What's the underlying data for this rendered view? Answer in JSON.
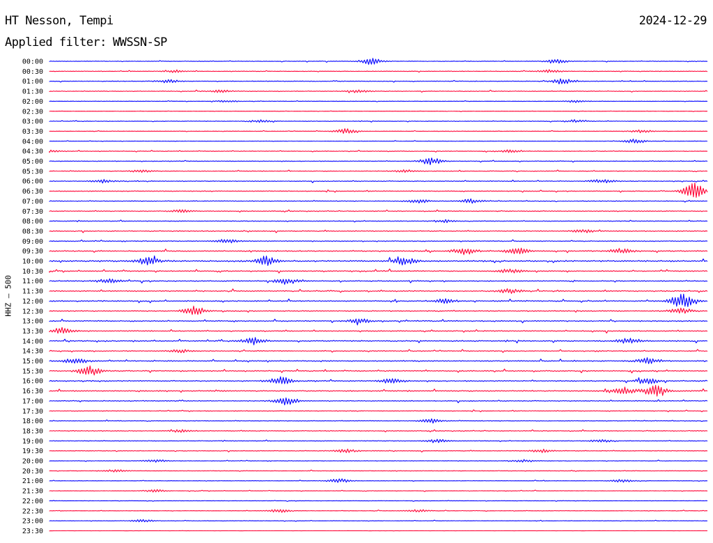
{
  "header": {
    "station": "HT Nesson, Tempi",
    "date": "2024-12-29",
    "filter_label": "Applied filter:",
    "filter_value": "WWSSN-SP",
    "channel_label": "HHZ — 500"
  },
  "chart_data": {
    "type": "line",
    "title": "HT Nesson, Tempi",
    "xlabel": "",
    "ylabel": "HHZ — 500",
    "grid": false,
    "legend": "none",
    "colors": [
      "#0000ff",
      "#ff0033"
    ],
    "trace_minutes": 30,
    "rows": [
      {
        "label": "00:00",
        "activity": 0.2,
        "events": [
          [
            0.49,
            0.7
          ],
          [
            0.77,
            0.5
          ]
        ]
      },
      {
        "label": "00:30",
        "activity": 0.2,
        "events": [
          [
            0.19,
            0.3
          ],
          [
            0.76,
            0.4
          ]
        ]
      },
      {
        "label": "01:00",
        "activity": 0.25,
        "events": [
          [
            0.18,
            0.4
          ],
          [
            0.78,
            0.6
          ]
        ]
      },
      {
        "label": "01:30",
        "activity": 0.25,
        "events": [
          [
            0.26,
            0.3
          ],
          [
            0.47,
            0.3
          ]
        ]
      },
      {
        "label": "02:00",
        "activity": 0.15,
        "events": [
          [
            0.27,
            0.2
          ],
          [
            0.8,
            0.3
          ]
        ]
      },
      {
        "label": "02:30",
        "activity": 0.1,
        "events": []
      },
      {
        "label": "03:00",
        "activity": 0.2,
        "events": [
          [
            0.32,
            0.3
          ],
          [
            0.8,
            0.3
          ]
        ]
      },
      {
        "label": "03:30",
        "activity": 0.15,
        "events": [
          [
            0.45,
            0.6
          ],
          [
            0.9,
            0.4
          ]
        ]
      },
      {
        "label": "04:00",
        "activity": 0.15,
        "events": [
          [
            0.89,
            0.5
          ]
        ]
      },
      {
        "label": "04:30",
        "activity": 0.2,
        "events": [
          [
            0.0,
            0.3
          ],
          [
            0.7,
            0.3
          ]
        ]
      },
      {
        "label": "05:00",
        "activity": 0.25,
        "events": [
          [
            0.58,
            0.8
          ]
        ]
      },
      {
        "label": "05:30",
        "activity": 0.25,
        "events": [
          [
            0.14,
            0.3
          ],
          [
            0.54,
            0.3
          ]
        ]
      },
      {
        "label": "06:00",
        "activity": 0.3,
        "events": [
          [
            0.08,
            0.4
          ],
          [
            0.84,
            0.4
          ]
        ]
      },
      {
        "label": "06:30",
        "activity": 0.3,
        "events": [
          [
            0.98,
            2.0
          ]
        ]
      },
      {
        "label": "07:00",
        "activity": 0.3,
        "events": [
          [
            0.56,
            0.5
          ],
          [
            0.64,
            0.5
          ]
        ]
      },
      {
        "label": "07:30",
        "activity": 0.3,
        "events": [
          [
            0.2,
            0.3
          ]
        ]
      },
      {
        "label": "08:00",
        "activity": 0.3,
        "events": [
          [
            0.6,
            0.3
          ]
        ]
      },
      {
        "label": "08:30",
        "activity": 0.35,
        "events": [
          [
            0.81,
            0.4
          ]
        ]
      },
      {
        "label": "09:00",
        "activity": 0.35,
        "events": [
          [
            0.27,
            0.5
          ]
        ]
      },
      {
        "label": "09:30",
        "activity": 0.45,
        "events": [
          [
            0.63,
            0.8
          ],
          [
            0.71,
            0.8
          ],
          [
            0.87,
            0.6
          ]
        ]
      },
      {
        "label": "10:00",
        "activity": 0.55,
        "events": [
          [
            0.15,
            0.9
          ],
          [
            0.33,
            1.1
          ],
          [
            0.54,
            0.9
          ]
        ]
      },
      {
        "label": "10:30",
        "activity": 0.4,
        "events": [
          [
            0.7,
            0.5
          ]
        ]
      },
      {
        "label": "11:00",
        "activity": 0.4,
        "events": [
          [
            0.09,
            0.5
          ],
          [
            0.36,
            0.7
          ]
        ]
      },
      {
        "label": "11:30",
        "activity": 0.4,
        "events": [
          [
            0.7,
            0.5
          ]
        ]
      },
      {
        "label": "12:00",
        "activity": 0.45,
        "events": [
          [
            0.6,
            0.5
          ],
          [
            0.96,
            2.0
          ]
        ]
      },
      {
        "label": "12:30",
        "activity": 0.4,
        "events": [
          [
            0.22,
            1.0
          ],
          [
            0.96,
            0.6
          ]
        ]
      },
      {
        "label": "13:00",
        "activity": 0.45,
        "events": [
          [
            0.47,
            0.5
          ]
        ]
      },
      {
        "label": "13:30",
        "activity": 0.4,
        "events": [
          [
            0.02,
            0.8
          ]
        ]
      },
      {
        "label": "14:00",
        "activity": 0.45,
        "events": [
          [
            0.31,
            0.8
          ],
          [
            0.88,
            0.6
          ]
        ]
      },
      {
        "label": "14:30",
        "activity": 0.35,
        "events": [
          [
            0.2,
            0.4
          ]
        ]
      },
      {
        "label": "15:00",
        "activity": 0.45,
        "events": [
          [
            0.04,
            0.7
          ],
          [
            0.91,
            0.7
          ]
        ]
      },
      {
        "label": "15:30",
        "activity": 0.4,
        "events": [
          [
            0.06,
            1.1
          ]
        ]
      },
      {
        "label": "16:00",
        "activity": 0.45,
        "events": [
          [
            0.35,
            1.0
          ],
          [
            0.52,
            0.6
          ],
          [
            0.91,
            0.8
          ]
        ]
      },
      {
        "label": "16:30",
        "activity": 0.45,
        "events": [
          [
            0.87,
            1.0
          ],
          [
            0.92,
            1.3
          ]
        ]
      },
      {
        "label": "17:00",
        "activity": 0.35,
        "events": [
          [
            0.36,
            0.9
          ]
        ]
      },
      {
        "label": "17:30",
        "activity": 0.25,
        "events": []
      },
      {
        "label": "18:00",
        "activity": 0.25,
        "events": [
          [
            0.58,
            0.5
          ]
        ]
      },
      {
        "label": "18:30",
        "activity": 0.3,
        "events": [
          [
            0.2,
            0.3
          ]
        ]
      },
      {
        "label": "19:00",
        "activity": 0.25,
        "events": [
          [
            0.59,
            0.4
          ],
          [
            0.84,
            0.3
          ]
        ]
      },
      {
        "label": "19:30",
        "activity": 0.25,
        "events": [
          [
            0.45,
            0.4
          ],
          [
            0.75,
            0.4
          ]
        ]
      },
      {
        "label": "20:00",
        "activity": 0.2,
        "events": [
          [
            0.16,
            0.3
          ],
          [
            0.72,
            0.3
          ]
        ]
      },
      {
        "label": "20:30",
        "activity": 0.2,
        "events": [
          [
            0.1,
            0.3
          ]
        ]
      },
      {
        "label": "21:00",
        "activity": 0.15,
        "events": [
          [
            0.44,
            0.5
          ],
          [
            0.87,
            0.3
          ]
        ]
      },
      {
        "label": "21:30",
        "activity": 0.15,
        "events": [
          [
            0.16,
            0.3
          ]
        ]
      },
      {
        "label": "22:00",
        "activity": 0.15,
        "events": []
      },
      {
        "label": "22:30",
        "activity": 0.15,
        "events": [
          [
            0.35,
            0.4
          ],
          [
            0.56,
            0.3
          ]
        ]
      },
      {
        "label": "23:00",
        "activity": 0.15,
        "events": [
          [
            0.14,
            0.3
          ]
        ]
      },
      {
        "label": "23:30",
        "activity": 0.05,
        "events": []
      }
    ]
  }
}
